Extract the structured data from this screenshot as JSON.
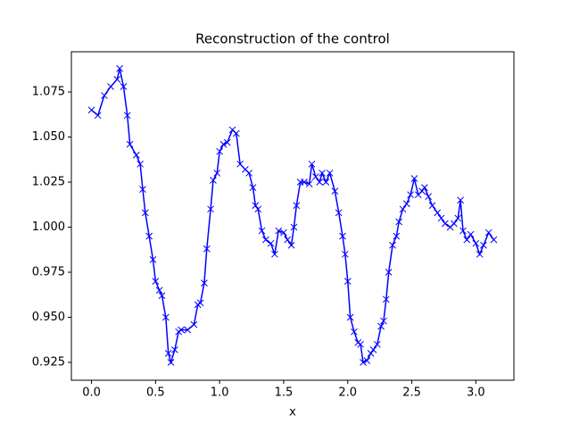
{
  "chart_data": {
    "type": "line",
    "title": "Reconstruction of the control",
    "x_label": "x",
    "series": [
      {
        "color": "#0000ff",
        "marker": "x",
        "x": [
          0,
          0.05,
          0.1,
          0.15,
          0.2,
          0.22,
          0.25,
          0.28,
          0.3,
          0.35,
          0.38,
          0.4,
          0.42,
          0.45,
          0.48,
          0.5,
          0.53,
          0.55,
          0.58,
          0.6,
          0.62,
          0.65,
          0.68,
          0.7,
          0.75,
          0.8,
          0.83,
          0.85,
          0.88,
          0.9,
          0.93,
          0.95,
          0.98,
          1.0,
          1.03,
          1.06,
          1.1,
          1.13,
          1.16,
          1.2,
          1.23,
          1.26,
          1.28,
          1.3,
          1.33,
          1.36,
          1.4,
          1.43,
          1.46,
          1.5,
          1.53,
          1.56,
          1.58,
          1.6,
          1.63,
          1.66,
          1.7,
          1.72,
          1.75,
          1.78,
          1.8,
          1.83,
          1.86,
          1.9,
          1.93,
          1.96,
          1.98,
          2.0,
          2.02,
          2.05,
          2.08,
          2.1,
          2.12,
          2.15,
          2.18,
          2.2,
          2.23,
          2.26,
          2.28,
          2.3,
          2.32,
          2.35,
          2.38,
          2.4,
          2.43,
          2.46,
          2.49,
          2.52,
          2.55,
          2.58,
          2.6,
          2.63,
          2.66,
          2.7,
          2.73,
          2.76,
          2.8,
          2.83,
          2.86,
          2.88,
          2.9,
          2.93,
          2.96,
          3.0,
          3.03,
          3.06,
          3.1,
          3.14
        ],
        "values": [
          1.065,
          1.062,
          1.073,
          1.078,
          1.082,
          1.088,
          1.078,
          1.062,
          1.046,
          1.04,
          1.035,
          1.021,
          1.008,
          0.995,
          0.982,
          0.97,
          0.965,
          0.962,
          0.95,
          0.93,
          0.925,
          0.932,
          0.942,
          0.943,
          0.943,
          0.946,
          0.957,
          0.958,
          0.969,
          0.988,
          1.01,
          1.026,
          1.03,
          1.042,
          1.046,
          1.047,
          1.054,
          1.052,
          1.035,
          1.032,
          1.03,
          1.022,
          1.012,
          1.01,
          0.998,
          0.993,
          0.991,
          0.985,
          0.998,
          0.997,
          0.993,
          0.99,
          1.0,
          1.012,
          1.025,
          1.025,
          1.024,
          1.035,
          1.028,
          1.025,
          1.03,
          1.025,
          1.03,
          1.02,
          1.008,
          0.995,
          0.985,
          0.97,
          0.95,
          0.942,
          0.936,
          0.935,
          0.925,
          0.926,
          0.93,
          0.932,
          0.935,
          0.945,
          0.948,
          0.96,
          0.975,
          0.99,
          0.995,
          1.003,
          1.01,
          1.013,
          1.018,
          1.027,
          1.018,
          1.02,
          1.022,
          1.017,
          1.012,
          1.008,
          1.005,
          1.002,
          1.0,
          1.002,
          1.005,
          1.015,
          0.998,
          0.993,
          0.996,
          0.991,
          0.985,
          0.99,
          0.997,
          0.993
        ]
      }
    ],
    "xlim": [
      -0.157,
      3.297
    ],
    "xticks": [
      {
        "value": 0,
        "label": "0.0"
      },
      0.5,
      {
        "value": 1,
        "label": "1.0"
      },
      1.5,
      {
        "value": 2,
        "label": "2.0"
      },
      2.5,
      {
        "value": 3,
        "label": "3.0"
      }
    ],
    "ylim": [
      0.9151,
      1.0973
    ],
    "yticks": [
      0.925,
      {
        "value": 0.95,
        "label": "0.950"
      },
      0.975,
      {
        "value": 1,
        "label": "1.000"
      },
      1.025,
      {
        "value": 1.05,
        "label": "1.050"
      },
      1.075
    ]
  }
}
